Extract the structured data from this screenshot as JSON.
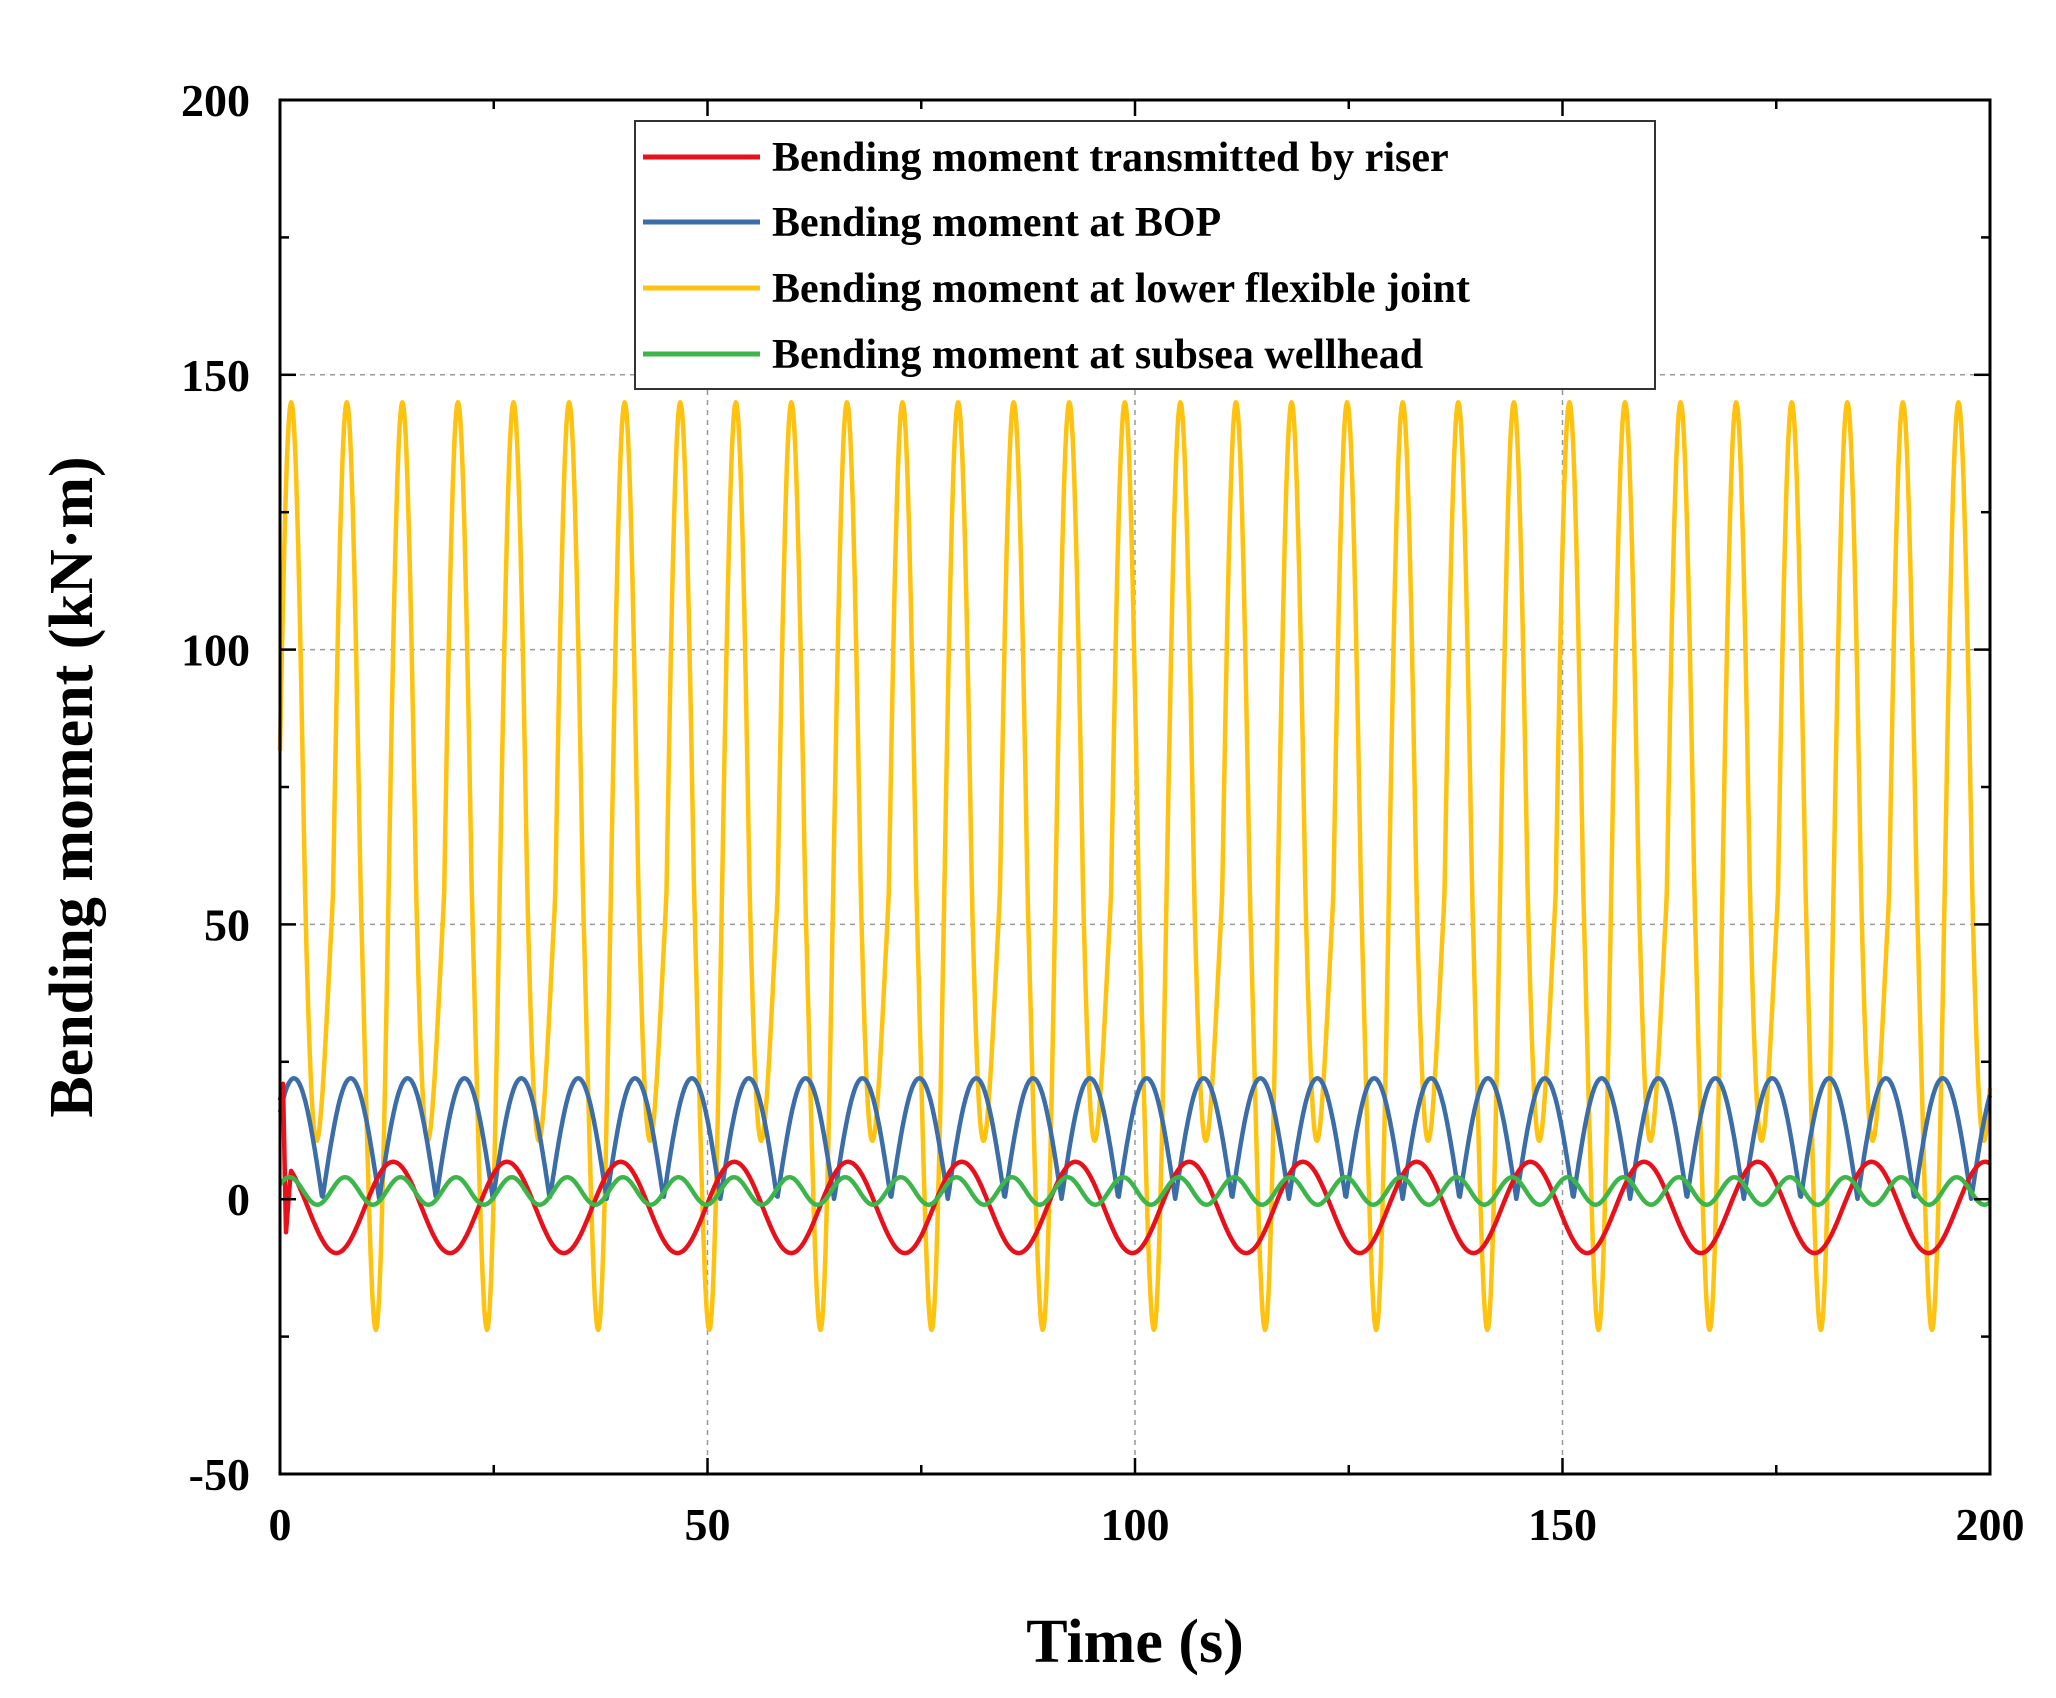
{
  "chart_data": {
    "type": "line",
    "title": "",
    "xlabel": "Time (s)",
    "ylabel": "Bending moment (kN·m)",
    "xlim": [
      0,
      200
    ],
    "ylim": [
      -50,
      200
    ],
    "xticks": [
      0,
      50,
      100,
      150,
      200
    ],
    "yticks": [
      -50,
      0,
      50,
      100,
      150,
      200
    ],
    "x_minor_step": 25,
    "y_minor_step": 25,
    "grid_x": [
      50,
      100,
      150
    ],
    "grid_y": [
      50,
      100,
      150
    ],
    "legend_position": "top",
    "sample_step": 0.1,
    "series": [
      {
        "name": "Bending moment transmitted by riser",
        "color": "#e8101a",
        "model": {
          "kind": "wave",
          "offset": -1.5,
          "amplitude": 8.3,
          "period": 13.3,
          "phase": 1.6
        },
        "start_transient": [
          [
            0,
            18
          ],
          [
            0.35,
            21
          ],
          [
            0.7,
            -6
          ],
          [
            1.2,
            4
          ]
        ]
      },
      {
        "name": "Bending moment at BOP",
        "color": "#3b6ea8",
        "model": {
          "kind": "abs_wave",
          "amplitude": 22,
          "period": 13.3,
          "phase": 0.8
        }
      },
      {
        "name": "Bending moment at lower flexible joint",
        "color": "#ffc20e",
        "model": {
          "kind": "dual_wave",
          "offset": 55,
          "amplitude": 90,
          "period": 6.5,
          "mod_offset": 0.67,
          "mod_amplitude": 0.33,
          "mod_period": 13.0,
          "phase": 0.3
        }
      },
      {
        "name": "Bending moment at subsea wellhead",
        "color": "#3cb54a",
        "model": {
          "kind": "wave",
          "offset": 1.5,
          "amplitude": 2.5,
          "period": 6.5,
          "phase": 0.5
        }
      }
    ]
  }
}
